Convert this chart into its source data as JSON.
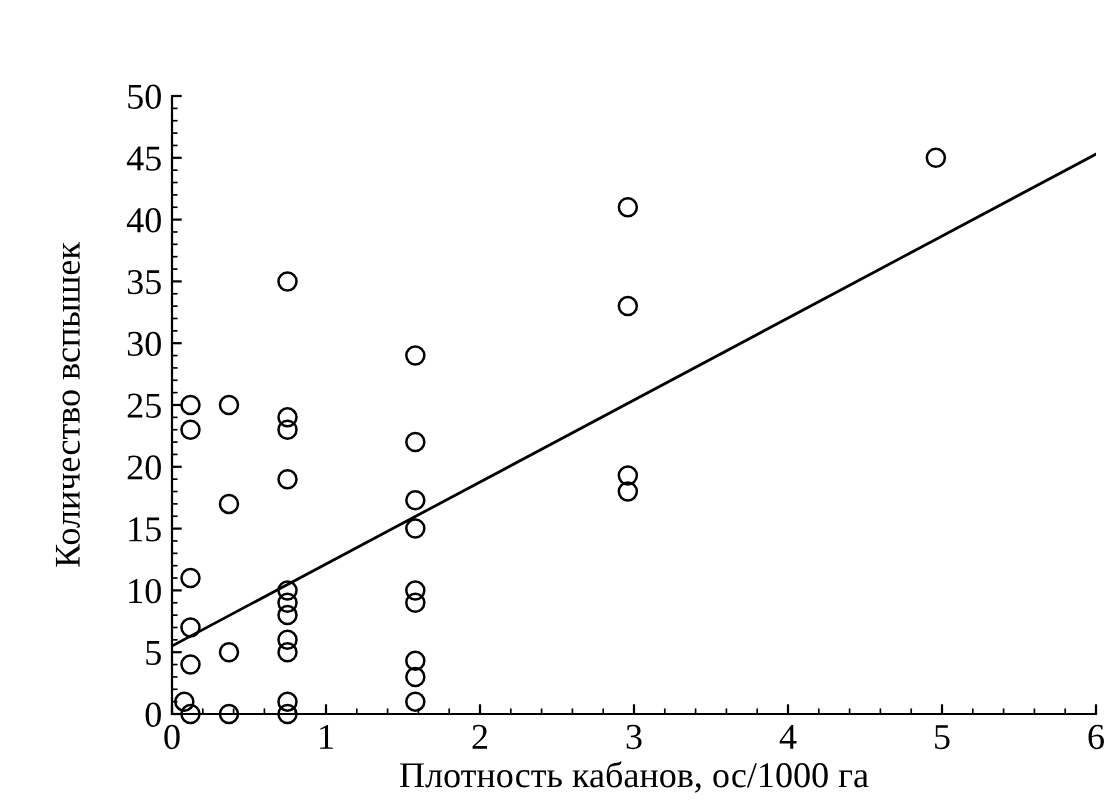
{
  "chart_data": {
    "type": "scatter",
    "xlabel": "Плотность кабанов, ос/1000 га",
    "ylabel": "Количество вспышек",
    "xlim": [
      0,
      6
    ],
    "ylim": [
      0,
      50
    ],
    "xticks": [
      0,
      1,
      2,
      3,
      4,
      5,
      6
    ],
    "yticks": [
      0,
      5,
      10,
      15,
      20,
      25,
      30,
      35,
      40,
      45,
      50
    ],
    "grid": false,
    "legend": false,
    "series": [
      {
        "marker": "circle",
        "color": "#000000",
        "x": [
          0.08,
          0.12,
          0.12,
          0.12,
          0.12,
          0.12,
          0.12,
          0.37,
          0.37,
          0.37,
          0.37,
          0.75,
          0.75,
          0.75,
          0.75,
          0.75,
          0.75,
          0.75,
          0.75,
          0.75,
          0.75,
          0.75,
          1.58,
          1.58,
          1.58,
          1.58,
          1.58,
          1.58,
          1.58,
          1.58,
          1.58,
          2.96,
          2.96,
          2.96,
          2.96,
          4.96
        ],
        "values": [
          1,
          0,
          4,
          7,
          11,
          23,
          25,
          0,
          5,
          17,
          25,
          0,
          1,
          5,
          6,
          8,
          9,
          10,
          19,
          23,
          24,
          35,
          1,
          3,
          4.3,
          9,
          10,
          15,
          17.3,
          22,
          29,
          18,
          19.3,
          33,
          41,
          45
        ]
      },
      {
        "type": "line",
        "marker": "none",
        "color": "#000000",
        "x": [
          0,
          6
        ],
        "values": [
          5.5,
          45.3
        ]
      }
    ]
  }
}
